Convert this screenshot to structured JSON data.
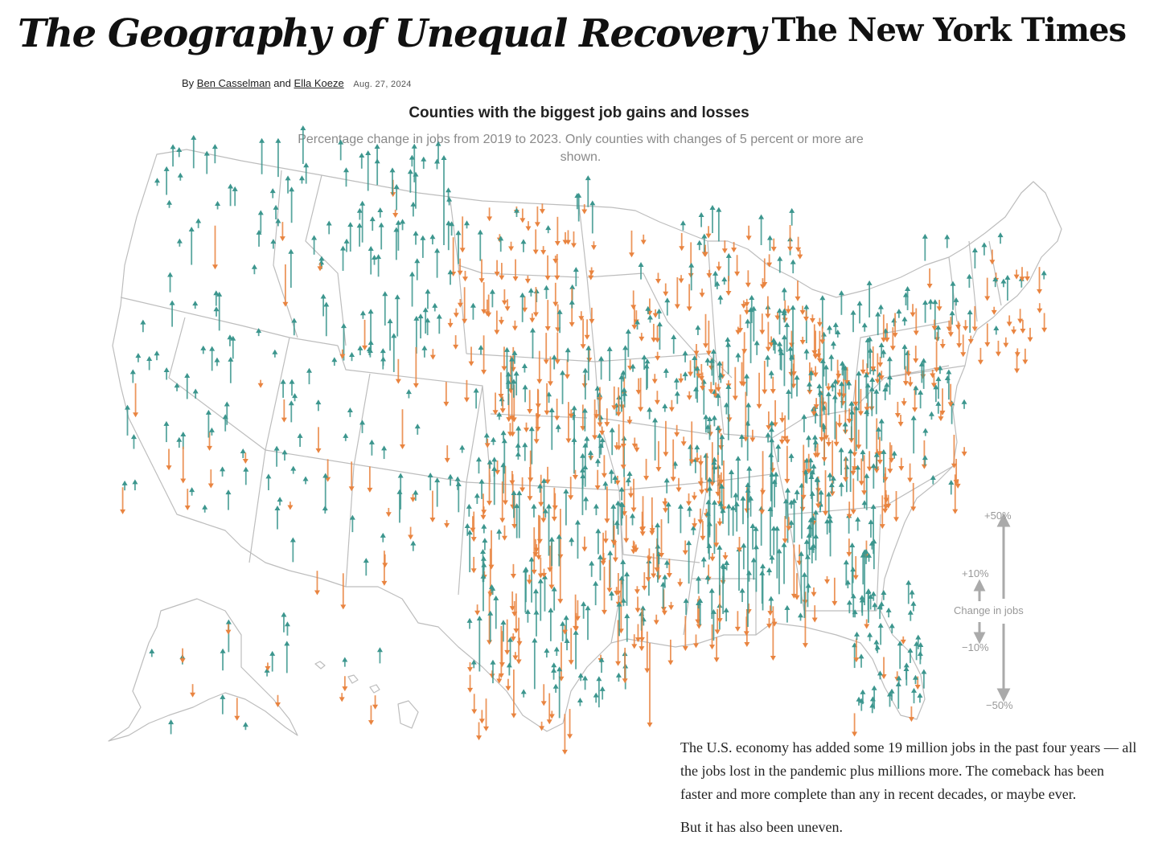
{
  "headline": "The Geography of Unequal Recovery",
  "masthead": "The New York Times",
  "byline": {
    "prefix": "By",
    "author1": "Ben Casselman",
    "conjunction": "and",
    "author2": "Ella Koeze",
    "date": "Aug. 27, 2024"
  },
  "chart": {
    "title": "Counties with the biggest job gains and losses",
    "subtitle": "Percentage change in jobs from 2019 to 2023. Only counties with changes of 5 percent or more are shown."
  },
  "legend": {
    "plus50": "+50%",
    "plus10": "+10%",
    "label": "Change in jobs",
    "minus10": "−10%",
    "minus50": "−50%"
  },
  "colors": {
    "gain": "#3c968e",
    "loss": "#e98440",
    "border": "#bdbdbd",
    "legend": "#aaaaaa"
  },
  "article": {
    "p1": "The U.S. economy has added some 19 million jobs in the past four years — all the jobs lost in the pandemic plus millions more. The comeback has been faster and more complete than any in recent decades, or maybe ever.",
    "p2": "But it has also been uneven."
  }
}
